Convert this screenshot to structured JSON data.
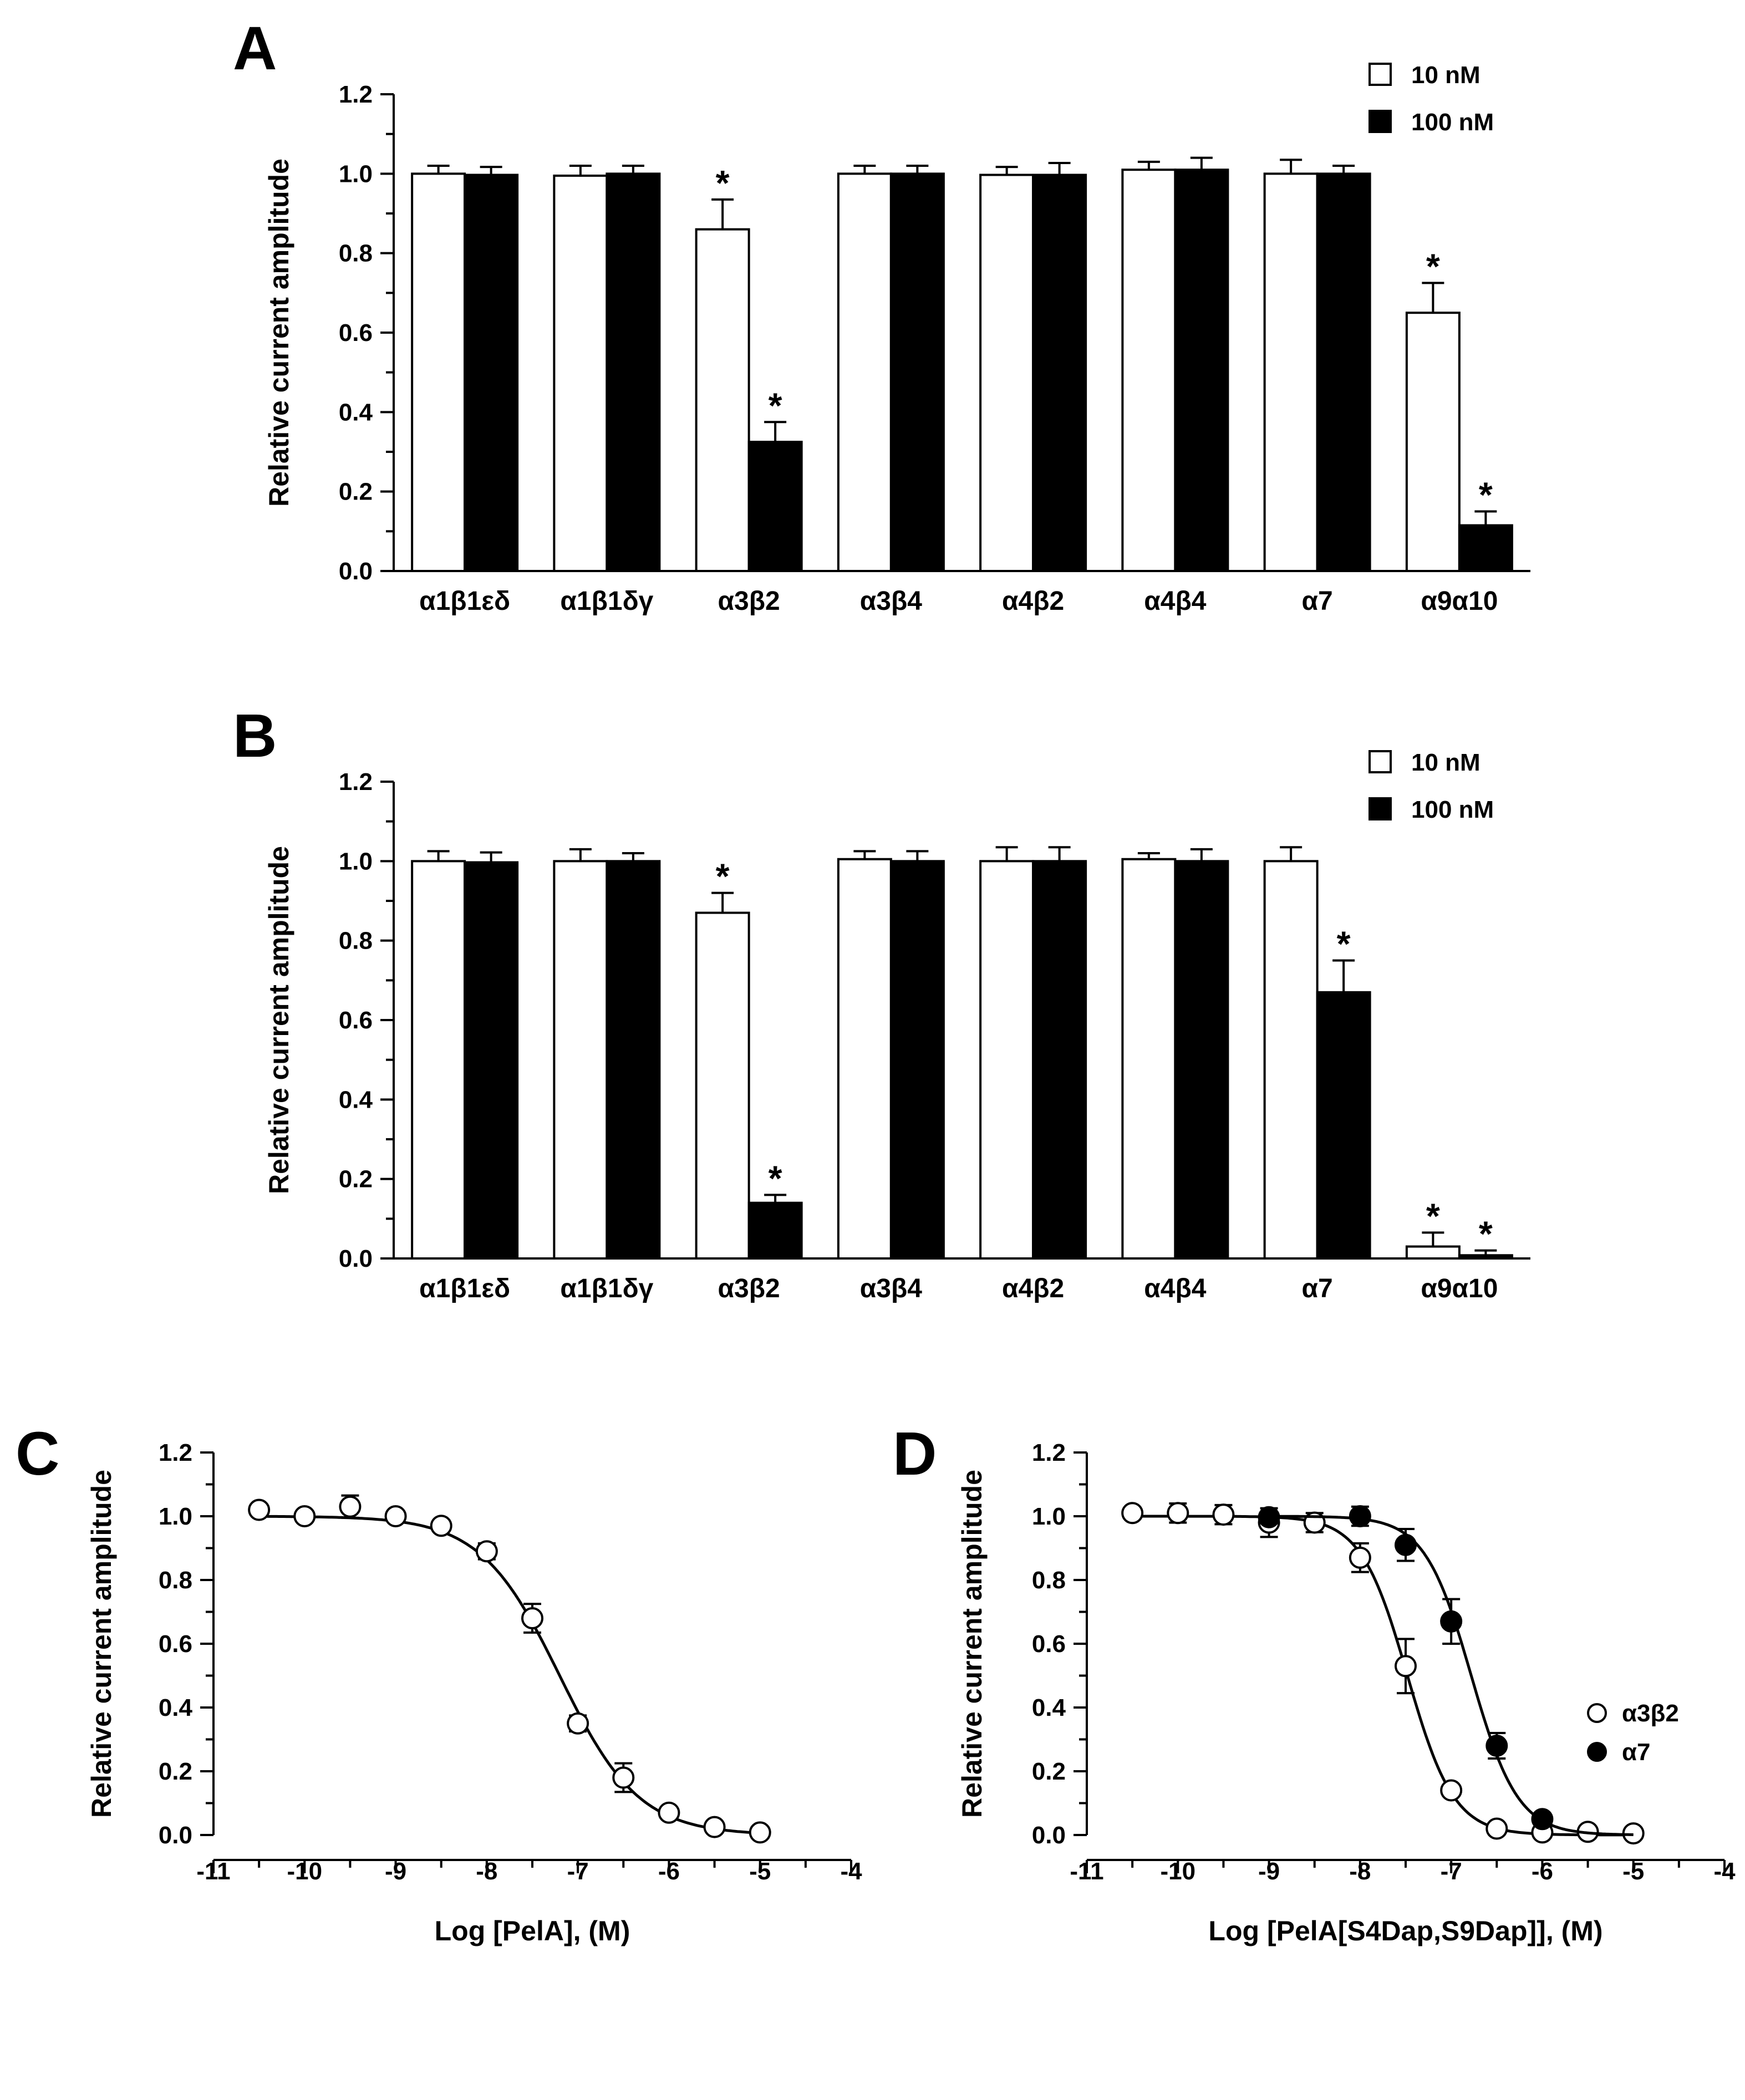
{
  "chart_data": [
    {
      "panel": "A",
      "type": "bar",
      "ylabel": "Relative current amplitude",
      "ylim": [
        0,
        1.2
      ],
      "yticks": [
        "0.0",
        "0.2",
        "0.4",
        "0.6",
        "0.8",
        "1.0",
        "1.2"
      ],
      "categories": [
        "α1β1εδ",
        "α1β1δγ",
        "α3β2",
        "α3β4",
        "α4β2",
        "α4β4",
        "α7",
        "α9α10"
      ],
      "legend_position": "top-right",
      "series": [
        {
          "name": "10 nM",
          "fill": "#ffffff",
          "values": [
            1.0,
            0.995,
            0.86,
            1.0,
            0.997,
            1.01,
            1.0,
            0.65
          ],
          "errors": [
            0.02,
            0.025,
            0.075,
            0.02,
            0.02,
            0.02,
            0.035,
            0.075
          ],
          "significant": [
            false,
            false,
            true,
            false,
            false,
            false,
            false,
            true
          ]
        },
        {
          "name": "100 nM",
          "fill": "#000000",
          "values": [
            0.997,
            1.0,
            0.325,
            1.0,
            0.997,
            1.01,
            1.0,
            0.115
          ],
          "errors": [
            0.02,
            0.02,
            0.05,
            0.02,
            0.03,
            0.03,
            0.02,
            0.035
          ],
          "significant": [
            false,
            false,
            true,
            false,
            false,
            false,
            false,
            true
          ]
        }
      ],
      "annotation": "*"
    },
    {
      "panel": "B",
      "type": "bar",
      "ylabel": "Relative current amplitude",
      "ylim": [
        0,
        1.2
      ],
      "yticks": [
        "0.0",
        "0.2",
        "0.4",
        "0.6",
        "0.8",
        "1.0",
        "1.2"
      ],
      "categories": [
        "α1β1εδ",
        "α1β1δγ",
        "α3β2",
        "α3β4",
        "α4β2",
        "α4β4",
        "α7",
        "α9α10"
      ],
      "legend_position": "top-right",
      "series": [
        {
          "name": "10 nM",
          "fill": "#ffffff",
          "values": [
            1.0,
            1.0,
            0.87,
            1.005,
            1.0,
            1.005,
            1.0,
            0.03
          ],
          "errors": [
            0.025,
            0.03,
            0.05,
            0.02,
            0.035,
            0.015,
            0.035,
            0.035
          ],
          "significant": [
            false,
            false,
            true,
            false,
            false,
            false,
            false,
            true
          ]
        },
        {
          "name": "100 nM",
          "fill": "#000000",
          "values": [
            0.997,
            1.0,
            0.14,
            1.0,
            1.0,
            1.0,
            0.67,
            0.008
          ],
          "errors": [
            0.025,
            0.02,
            0.02,
            0.025,
            0.035,
            0.03,
            0.08,
            0.012
          ],
          "significant": [
            false,
            false,
            true,
            false,
            false,
            false,
            true,
            true
          ]
        }
      ],
      "annotation": "*"
    },
    {
      "panel": "C",
      "type": "scatter",
      "xlabel": "Log [PelA], (M)",
      "ylabel": "Relative current amplitude",
      "xlim": [
        -11,
        -4
      ],
      "ylim": [
        0,
        1.2
      ],
      "xticks": [
        "-11",
        "-10",
        "-9",
        "-8",
        "-7",
        "-6",
        "-5",
        "-4"
      ],
      "yticks": [
        "0.0",
        "0.2",
        "0.4",
        "0.6",
        "0.8",
        "1.0",
        "1.2"
      ],
      "series": [
        {
          "name": "",
          "marker": "open-circle",
          "x": [
            -10.5,
            -10,
            -9.5,
            -9,
            -8.5,
            -8,
            -7.5,
            -7,
            -6.5,
            -6,
            -5.5,
            -5
          ],
          "y": [
            1.02,
            1.0,
            1.03,
            1.0,
            0.97,
            0.89,
            0.68,
            0.35,
            0.18,
            0.07,
            0.025,
            0.008
          ],
          "err": [
            0.0,
            0.0,
            0.035,
            0.0,
            0.0,
            0.025,
            0.045,
            0.025,
            0.045,
            0.0,
            0.0,
            0.0
          ],
          "fit": {
            "ic50_log": -7.2,
            "hill": 1.0
          }
        }
      ]
    },
    {
      "panel": "D",
      "type": "scatter",
      "xlabel": "Log [PelA[S4Dap,S9Dap]], (M)",
      "ylabel": "Relative current amplitude",
      "xlim": [
        -11,
        -4
      ],
      "ylim": [
        0,
        1.2
      ],
      "xticks": [
        "-11",
        "-10",
        "-9",
        "-8",
        "-7",
        "-6",
        "-5",
        "-4"
      ],
      "yticks": [
        "0.0",
        "0.2",
        "0.4",
        "0.6",
        "0.8",
        "1.0",
        "1.2"
      ],
      "legend_position": "right",
      "series": [
        {
          "name": "α3β2",
          "marker": "open-circle",
          "x": [
            -10.5,
            -10,
            -9.5,
            -9,
            -8.5,
            -8,
            -7.5,
            -7,
            -6.5,
            -6,
            -5.5,
            -5
          ],
          "y": [
            1.01,
            1.01,
            1.005,
            0.98,
            0.98,
            0.87,
            0.53,
            0.14,
            0.02,
            0.008,
            0.01,
            0.005
          ],
          "err": [
            0.0,
            0.03,
            0.03,
            0.045,
            0.03,
            0.045,
            0.085,
            0.0,
            0.0,
            0.0,
            0.0,
            0.0
          ],
          "fit": {
            "ic50_log": -7.48,
            "hill": 1.7
          }
        },
        {
          "name": "α7",
          "marker": "filled-circle",
          "x": [
            -9,
            -8,
            -7.5,
            -7,
            -6.5,
            -6
          ],
          "y": [
            0.997,
            1.0,
            0.91,
            0.67,
            0.28,
            0.05
          ],
          "err": [
            0.0,
            0.03,
            0.05,
            0.07,
            0.04,
            0.0
          ],
          "fit": {
            "ic50_log": -6.78,
            "hill": 1.7
          }
        }
      ]
    }
  ]
}
